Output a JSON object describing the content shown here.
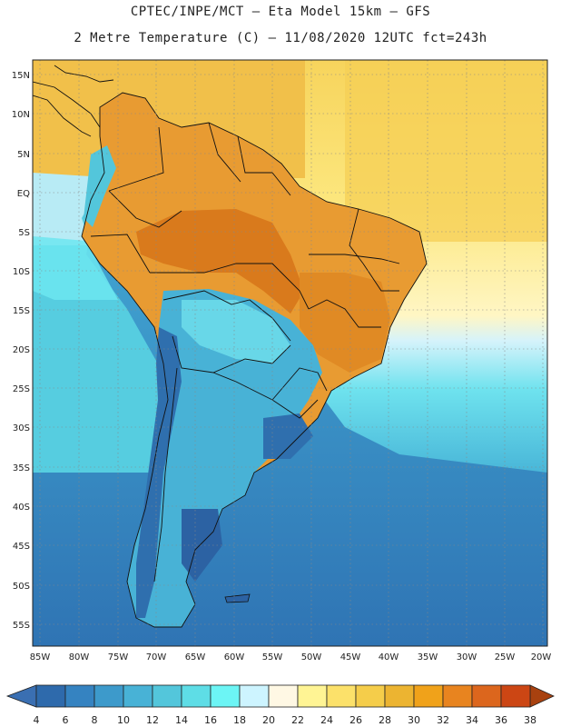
{
  "header": {
    "line1": "CPTEC/INPE/MCT –  Eta Model 15km – GFS",
    "line2": "2 Metre Temperature (C) – 11/08/2020 12UTC fct=243h"
  },
  "axes": {
    "lat_labels": [
      "15N",
      "10N",
      "5N",
      "EQ",
      "5S",
      "10S",
      "15S",
      "20S",
      "25S",
      "30S",
      "35S",
      "40S",
      "45S",
      "50S",
      "55S"
    ],
    "lon_labels": [
      "85W",
      "80W",
      "75W",
      "70W",
      "65W",
      "60W",
      "55W",
      "50W",
      "45W",
      "40W",
      "35W",
      "30W",
      "25W",
      "20W"
    ]
  },
  "colorbar": {
    "labels": [
      "4",
      "6",
      "8",
      "10",
      "12",
      "14",
      "16",
      "18",
      "20",
      "22",
      "24",
      "26",
      "28",
      "30",
      "32",
      "34",
      "36",
      "38"
    ],
    "colors": [
      "#2e6aac",
      "#3583c1",
      "#3d9acb",
      "#48b2d6",
      "#53c6db",
      "#5edde6",
      "#6cf5f5",
      "#cdf4ff",
      "#fff8e4",
      "#fff494",
      "#fce16a",
      "#f5cd4a",
      "#ecb431",
      "#f0a21a",
      "#e8841f",
      "#dc661d",
      "#cc4614",
      "#b8360c",
      "#a8410f",
      "#3c6cb0"
    ]
  },
  "regions": {
    "north_hot": "#e8a030",
    "amazon_core": "#d97a1c",
    "atlantic_tropical": "#fce57a",
    "pacific_equatorial": "#b8ebf5",
    "pacific_mid": "#56cde0",
    "ocean_south": "#3d9acb",
    "andes_cold": "#2f6fae",
    "patagonia": "#2c62a3"
  }
}
